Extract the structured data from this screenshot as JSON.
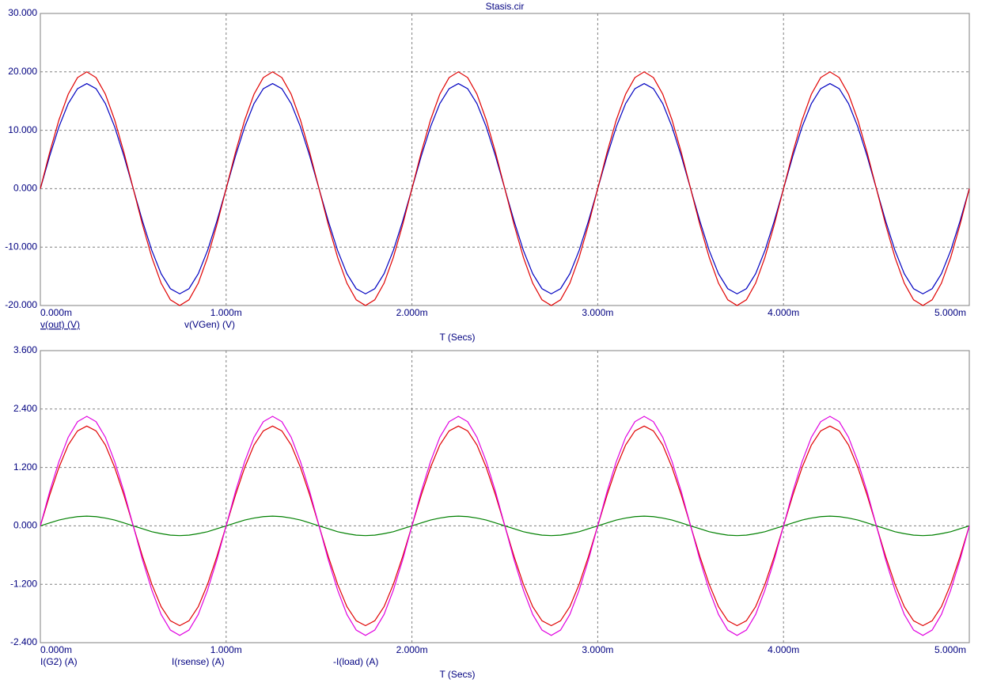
{
  "chart_data": [
    {
      "type": "line",
      "title": "Stasis.cir",
      "x_label": "T (Secs)",
      "x": [
        0,
        0.05,
        0.1,
        0.15,
        0.2,
        0.25,
        0.3,
        0.35,
        0.4,
        0.45,
        0.5,
        0.55,
        0.6,
        0.65,
        0.7,
        0.75,
        0.8,
        0.85,
        0.9,
        0.95,
        1,
        1.05,
        1.1,
        1.15,
        1.2,
        1.25,
        1.3,
        1.35,
        1.4,
        1.45,
        1.5,
        1.55,
        1.6,
        1.65,
        1.7,
        1.75,
        1.8,
        1.85,
        1.9,
        1.95,
        2,
        2.05,
        2.1,
        2.15,
        2.2,
        2.25,
        2.3,
        2.35,
        2.4,
        2.45,
        2.5,
        2.55,
        2.6,
        2.65,
        2.7,
        2.75,
        2.8,
        2.85,
        2.9,
        2.95,
        3,
        3.05,
        3.1,
        3.15,
        3.2,
        3.25,
        3.3,
        3.35,
        3.4,
        3.45,
        3.5,
        3.55,
        3.6,
        3.65,
        3.7,
        3.75,
        3.8,
        3.85,
        3.9,
        3.95,
        4,
        4.05,
        4.1,
        4.15,
        4.2,
        4.25,
        4.3,
        4.35,
        4.4,
        4.45,
        4.5,
        4.55,
        4.6,
        4.65,
        4.7,
        4.75,
        4.8,
        4.85,
        4.9,
        4.95,
        5
      ],
      "xlim": [
        0,
        5
      ],
      "xticks": [
        {
          "value": 0,
          "label": "0.000m"
        },
        {
          "value": 1,
          "label": "1.000m"
        },
        {
          "value": 2,
          "label": "2.000m"
        },
        {
          "value": 3,
          "label": "3.000m"
        },
        {
          "value": 4,
          "label": "4.000m"
        },
        {
          "value": 5,
          "label": "5.000m"
        }
      ],
      "ylim": [
        -20,
        30
      ],
      "yticks": [
        {
          "value": -20,
          "label": "-20.000"
        },
        {
          "value": -10,
          "label": "-10.000"
        },
        {
          "value": 0,
          "label": "0.000"
        },
        {
          "value": 10,
          "label": "10.000"
        },
        {
          "value": 20,
          "label": "20.000"
        },
        {
          "value": 30,
          "label": "30.000"
        }
      ],
      "grid": true,
      "series": [
        {
          "name": "v(out) (V)",
          "color": "#0000c0",
          "values": [
            0,
            5.56,
            10.58,
            14.56,
            17.12,
            18,
            17.12,
            14.56,
            10.58,
            5.56,
            0,
            -5.56,
            -10.58,
            -14.56,
            -17.12,
            -18,
            -17.12,
            -14.56,
            -10.58,
            -5.56,
            0,
            5.56,
            10.58,
            14.56,
            17.12,
            18,
            17.12,
            14.56,
            10.58,
            5.56,
            0,
            -5.56,
            -10.58,
            -14.56,
            -17.12,
            -18,
            -17.12,
            -14.56,
            -10.58,
            -5.56,
            0,
            5.56,
            10.58,
            14.56,
            17.12,
            18,
            17.12,
            14.56,
            10.58,
            5.56,
            0,
            -5.56,
            -10.58,
            -14.56,
            -17.12,
            -18,
            -17.12,
            -14.56,
            -10.58,
            -5.56,
            0,
            5.56,
            10.58,
            14.56,
            17.12,
            18,
            17.12,
            14.56,
            10.58,
            5.56,
            0,
            -5.56,
            -10.58,
            -14.56,
            -17.12,
            -18,
            -17.12,
            -14.56,
            -10.58,
            -5.56,
            0,
            5.56,
            10.58,
            14.56,
            17.12,
            18,
            17.12,
            14.56,
            10.58,
            5.56,
            0,
            -5.56,
            -10.58,
            -14.56,
            -17.12,
            -18,
            -17.12,
            -14.56,
            -10.58,
            -5.56,
            0
          ]
        },
        {
          "name": "v(VGen) (V)",
          "color": "#e00000",
          "values": [
            0,
            6.18,
            11.76,
            16.18,
            19.02,
            20,
            19.02,
            16.18,
            11.76,
            6.18,
            0,
            -6.18,
            -11.76,
            -16.18,
            -19.02,
            -20,
            -19.02,
            -16.18,
            -11.76,
            -6.18,
            0,
            6.18,
            11.76,
            16.18,
            19.02,
            20,
            19.02,
            16.18,
            11.76,
            6.18,
            0,
            -6.18,
            -11.76,
            -16.18,
            -19.02,
            -20,
            -19.02,
            -16.18,
            -11.76,
            -6.18,
            0,
            6.18,
            11.76,
            16.18,
            19.02,
            20,
            19.02,
            16.18,
            11.76,
            6.18,
            0,
            -6.18,
            -11.76,
            -16.18,
            -19.02,
            -20,
            -19.02,
            -16.18,
            -11.76,
            -6.18,
            0,
            6.18,
            11.76,
            16.18,
            19.02,
            20,
            19.02,
            16.18,
            11.76,
            6.18,
            0,
            -6.18,
            -11.76,
            -16.18,
            -19.02,
            -20,
            -19.02,
            -16.18,
            -11.76,
            -6.18,
            0,
            6.18,
            11.76,
            16.18,
            19.02,
            20,
            19.02,
            16.18,
            11.76,
            6.18,
            0,
            -6.18,
            -11.76,
            -16.18,
            -19.02,
            -20,
            -19.02,
            -16.18,
            -11.76,
            -6.18,
            0
          ]
        }
      ]
    },
    {
      "type": "line",
      "x_label": "T (Secs)",
      "x": [
        0,
        0.05,
        0.1,
        0.15,
        0.2,
        0.25,
        0.3,
        0.35,
        0.4,
        0.45,
        0.5,
        0.55,
        0.6,
        0.65,
        0.7,
        0.75,
        0.8,
        0.85,
        0.9,
        0.95,
        1,
        1.05,
        1.1,
        1.15,
        1.2,
        1.25,
        1.3,
        1.35,
        1.4,
        1.45,
        1.5,
        1.55,
        1.6,
        1.65,
        1.7,
        1.75,
        1.8,
        1.85,
        1.9,
        1.95,
        2,
        2.05,
        2.1,
        2.15,
        2.2,
        2.25,
        2.3,
        2.35,
        2.4,
        2.45,
        2.5,
        2.55,
        2.6,
        2.65,
        2.7,
        2.75,
        2.8,
        2.85,
        2.9,
        2.95,
        3,
        3.05,
        3.1,
        3.15,
        3.2,
        3.25,
        3.3,
        3.35,
        3.4,
        3.45,
        3.5,
        3.55,
        3.6,
        3.65,
        3.7,
        3.75,
        3.8,
        3.85,
        3.9,
        3.95,
        4,
        4.05,
        4.1,
        4.15,
        4.2,
        4.25,
        4.3,
        4.35,
        4.4,
        4.45,
        4.5,
        4.55,
        4.6,
        4.65,
        4.7,
        4.75,
        4.8,
        4.85,
        4.9,
        4.95,
        5
      ],
      "xlim": [
        0,
        5
      ],
      "xticks": [
        {
          "value": 0,
          "label": "0.000m"
        },
        {
          "value": 1,
          "label": "1.000m"
        },
        {
          "value": 2,
          "label": "2.000m"
        },
        {
          "value": 3,
          "label": "3.000m"
        },
        {
          "value": 4,
          "label": "4.000m"
        },
        {
          "value": 5,
          "label": "5.000m"
        }
      ],
      "ylim": [
        -2.4,
        3.6
      ],
      "yticks": [
        {
          "value": -2.4,
          "label": "-2.400"
        },
        {
          "value": -1.2,
          "label": "-1.200"
        },
        {
          "value": 0,
          "label": "0.000"
        },
        {
          "value": 1.2,
          "label": "1.200"
        },
        {
          "value": 2.4,
          "label": "2.400"
        },
        {
          "value": 3.6,
          "label": "3.600"
        }
      ],
      "grid": true,
      "series": [
        {
          "name": "I(G2) (A)",
          "color": "#e00000",
          "values": [
            0,
            0.63,
            1.2,
            1.66,
            1.95,
            2.05,
            1.95,
            1.66,
            1.2,
            0.63,
            0,
            -0.63,
            -1.2,
            -1.66,
            -1.95,
            -2.05,
            -1.95,
            -1.66,
            -1.2,
            -0.63,
            0,
            0.63,
            1.2,
            1.66,
            1.95,
            2.05,
            1.95,
            1.66,
            1.2,
            0.63,
            0,
            -0.63,
            -1.2,
            -1.66,
            -1.95,
            -2.05,
            -1.95,
            -1.66,
            -1.2,
            -0.63,
            0,
            0.63,
            1.2,
            1.66,
            1.95,
            2.05,
            1.95,
            1.66,
            1.2,
            0.63,
            0,
            -0.63,
            -1.2,
            -1.66,
            -1.95,
            -2.05,
            -1.95,
            -1.66,
            -1.2,
            -0.63,
            0,
            0.63,
            1.2,
            1.66,
            1.95,
            2.05,
            1.95,
            1.66,
            1.2,
            0.63,
            0,
            -0.63,
            -1.2,
            -1.66,
            -1.95,
            -2.05,
            -1.95,
            -1.66,
            -1.2,
            -0.63,
            0,
            0.63,
            1.2,
            1.66,
            1.95,
            2.05,
            1.95,
            1.66,
            1.2,
            0.63,
            0,
            -0.63,
            -1.2,
            -1.66,
            -1.95,
            -2.05,
            -1.95,
            -1.66,
            -1.2,
            -0.63,
            0
          ]
        },
        {
          "name": "I(rsense) (A)",
          "color": "#008000",
          "values": [
            0,
            0.06,
            0.12,
            0.16,
            0.19,
            0.2,
            0.19,
            0.16,
            0.12,
            0.06,
            0,
            -0.06,
            -0.12,
            -0.16,
            -0.19,
            -0.2,
            -0.19,
            -0.16,
            -0.12,
            -0.06,
            0,
            0.06,
            0.12,
            0.16,
            0.19,
            0.2,
            0.19,
            0.16,
            0.12,
            0.06,
            0,
            -0.06,
            -0.12,
            -0.16,
            -0.19,
            -0.2,
            -0.19,
            -0.16,
            -0.12,
            -0.06,
            0,
            0.06,
            0.12,
            0.16,
            0.19,
            0.2,
            0.19,
            0.16,
            0.12,
            0.06,
            0,
            -0.06,
            -0.12,
            -0.16,
            -0.19,
            -0.2,
            -0.19,
            -0.16,
            -0.12,
            -0.06,
            0,
            0.06,
            0.12,
            0.16,
            0.19,
            0.2,
            0.19,
            0.16,
            0.12,
            0.06,
            0,
            -0.06,
            -0.12,
            -0.16,
            -0.19,
            -0.2,
            -0.19,
            -0.16,
            -0.12,
            -0.06,
            0,
            0.06,
            0.12,
            0.16,
            0.19,
            0.2,
            0.19,
            0.16,
            0.12,
            0.06,
            0,
            -0.06,
            -0.12,
            -0.16,
            -0.19,
            -0.2,
            -0.19,
            -0.16,
            -0.12,
            -0.06,
            0
          ]
        },
        {
          "name": "-I(load) (A)",
          "color": "#e000e0",
          "values": [
            0,
            0.7,
            1.32,
            1.82,
            2.14,
            2.25,
            2.14,
            1.82,
            1.32,
            0.7,
            0,
            -0.7,
            -1.32,
            -1.82,
            -2.14,
            -2.25,
            -2.14,
            -1.82,
            -1.32,
            -0.7,
            0,
            0.7,
            1.32,
            1.82,
            2.14,
            2.25,
            2.14,
            1.82,
            1.32,
            0.7,
            0,
            -0.7,
            -1.32,
            -1.82,
            -2.14,
            -2.25,
            -2.14,
            -1.82,
            -1.32,
            -0.7,
            0,
            0.7,
            1.32,
            1.82,
            2.14,
            2.25,
            2.14,
            1.82,
            1.32,
            0.7,
            0,
            -0.7,
            -1.32,
            -1.82,
            -2.14,
            -2.25,
            -2.14,
            -1.82,
            -1.32,
            -0.7,
            0,
            0.7,
            1.32,
            1.82,
            2.14,
            2.25,
            2.14,
            1.82,
            1.32,
            0.7,
            0,
            -0.7,
            -1.32,
            -1.82,
            -2.14,
            -2.25,
            -2.14,
            -1.82,
            -1.32,
            -0.7,
            0,
            0.7,
            1.32,
            1.82,
            2.14,
            2.25,
            2.14,
            1.82,
            1.32,
            0.7,
            0,
            -0.7,
            -1.32,
            -1.82,
            -2.14,
            -2.25,
            -2.14,
            -1.82,
            -1.32,
            -0.7,
            0
          ]
        }
      ]
    }
  ]
}
